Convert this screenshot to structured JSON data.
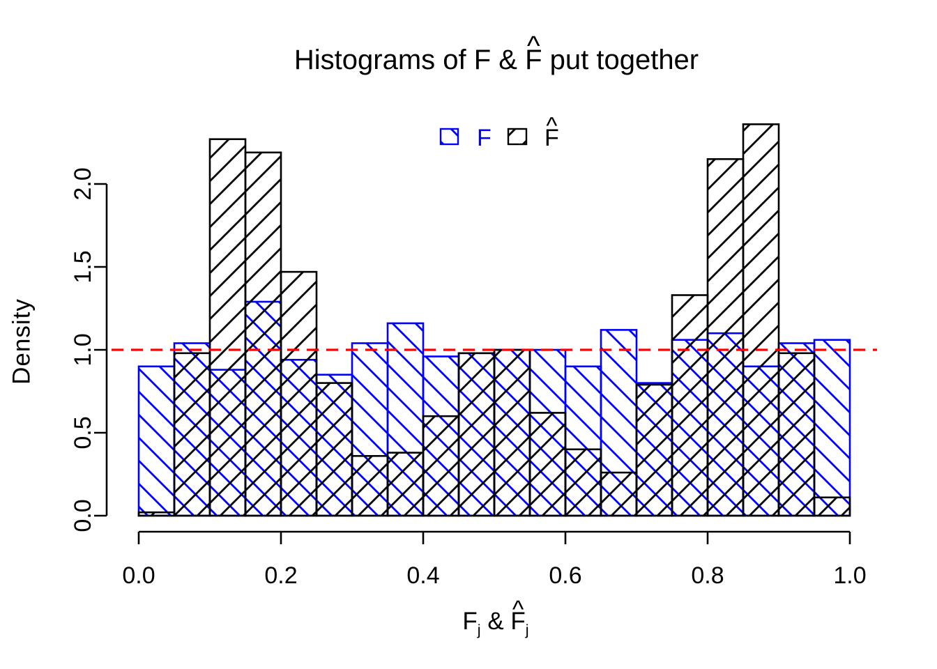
{
  "title": {
    "pre": "Histograms of F & ",
    "fhat": "F",
    "hat_char": "^",
    "post": " put together"
  },
  "ylabel": "Density",
  "xlabel": {
    "f": "F",
    "f_sub": "j",
    "sep": " & ",
    "fhat": "F",
    "hat_char": "^",
    "fhat_sub": "j"
  },
  "legend": {
    "f_label": "F",
    "fhat_label": "F",
    "fhat_hat_char": "^"
  },
  "colors": {
    "f_series": "#0000FF",
    "fhat_series": "#000000",
    "reference_line": "#FF0000",
    "axis": "#000000",
    "background": "#FFFFFF"
  },
  "chart_data": {
    "type": "bar",
    "subtype": "overlaid-density-histograms",
    "title": "Histograms of F & F̂ put together",
    "xlabel": "F_j & F̂_j",
    "ylabel": "Density",
    "xlim": [
      0.0,
      1.0
    ],
    "ylim": [
      0.0,
      2.4
    ],
    "x_ticks": [
      0.0,
      0.2,
      0.4,
      0.6,
      0.8,
      1.0
    ],
    "y_ticks": [
      0.0,
      0.5,
      1.0,
      1.5,
      2.0
    ],
    "bin_start": 0.0,
    "bin_width": 0.05,
    "grid": false,
    "legend_position": "top-center",
    "reference_line": {
      "y": 1.0,
      "style": "dashed",
      "color": "#FF0000"
    },
    "series": [
      {
        "name": "F",
        "color": "#0000FF",
        "hatch": "\\",
        "densities": [
          0.9,
          1.04,
          0.88,
          1.29,
          0.94,
          0.85,
          1.04,
          1.16,
          0.96,
          0.98,
          1.0,
          1.0,
          0.9,
          1.12,
          0.8,
          1.06,
          1.1,
          0.9,
          1.04,
          1.06
        ]
      },
      {
        "name": "F̂",
        "color": "#000000",
        "hatch": "/",
        "densities": [
          0.02,
          0.98,
          2.27,
          2.19,
          1.47,
          0.8,
          0.36,
          0.38,
          0.6,
          0.98,
          1.0,
          0.62,
          0.4,
          0.26,
          0.79,
          1.33,
          2.15,
          2.36,
          0.98,
          0.11
        ]
      }
    ]
  }
}
